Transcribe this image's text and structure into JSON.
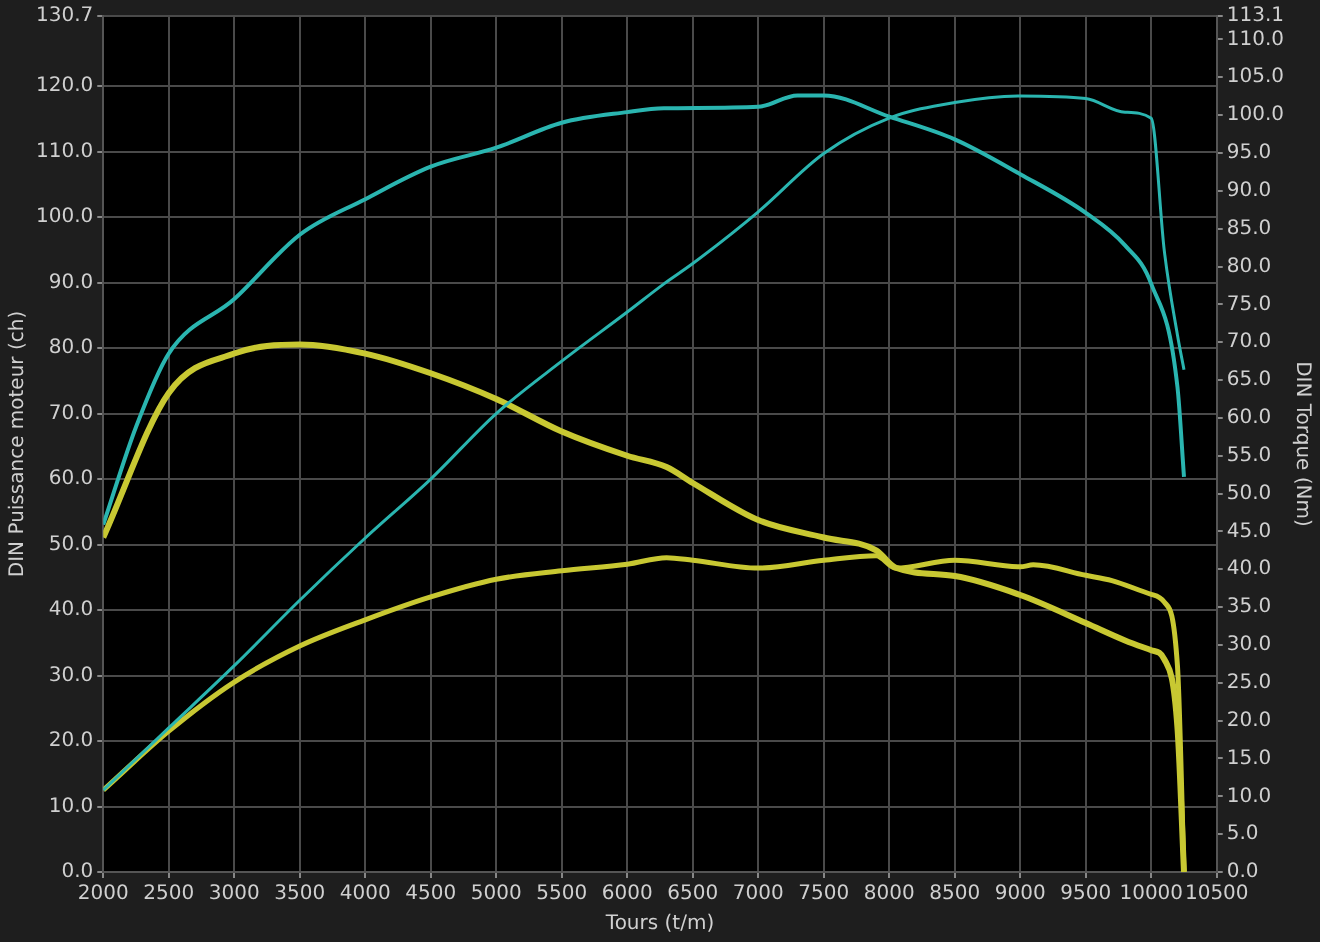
{
  "chart_data": {
    "type": "line",
    "xlabel": "Tours (t/m)",
    "ylabel": "DIN Puissance moteur (ch)",
    "y2label": "DIN Torque (Nm)",
    "xlim": [
      2000,
      10500
    ],
    "xticks": [
      2000,
      2500,
      3000,
      3500,
      4000,
      4500,
      5000,
      5500,
      6000,
      6500,
      7000,
      7500,
      8000,
      8500,
      9000,
      9500,
      10000,
      10500
    ],
    "ylim": [
      0,
      130.7
    ],
    "yticks": [
      {
        "value": 0,
        "label": "0.0"
      },
      {
        "value": 10,
        "label": "10.0"
      },
      {
        "value": 20,
        "label": "20.0"
      },
      {
        "value": 30,
        "label": "30.0"
      },
      {
        "value": 40,
        "label": "40.0"
      },
      {
        "value": 50,
        "label": "50.0"
      },
      {
        "value": 60,
        "label": "60.0"
      },
      {
        "value": 70,
        "label": "70.0"
      },
      {
        "value": 80,
        "label": "80.0"
      },
      {
        "value": 90,
        "label": "90.0"
      },
      {
        "value": 100,
        "label": "100.0"
      },
      {
        "value": 110,
        "label": "110.0"
      },
      {
        "value": 120,
        "label": "120.0"
      },
      {
        "value": 130.7,
        "label": "130.7"
      }
    ],
    "y2lim": [
      0,
      113.1
    ],
    "y2ticks": [
      {
        "value": 0,
        "label": "0.0"
      },
      {
        "value": 5,
        "label": "5.0"
      },
      {
        "value": 10,
        "label": "10.0"
      },
      {
        "value": 15,
        "label": "15.0"
      },
      {
        "value": 20,
        "label": "20.0"
      },
      {
        "value": 25,
        "label": "25.0"
      },
      {
        "value": 30,
        "label": "30.0"
      },
      {
        "value": 35,
        "label": "35.0"
      },
      {
        "value": 40,
        "label": "40.0"
      },
      {
        "value": 45,
        "label": "45.0"
      },
      {
        "value": 50,
        "label": "50.0"
      },
      {
        "value": 55,
        "label": "55.0"
      },
      {
        "value": 60,
        "label": "60.0"
      },
      {
        "value": 65,
        "label": "65.0"
      },
      {
        "value": 70,
        "label": "70.0"
      },
      {
        "value": 75,
        "label": "75.0"
      },
      {
        "value": 80,
        "label": "80.0"
      },
      {
        "value": 85,
        "label": "85.0"
      },
      {
        "value": 90,
        "label": "90.0"
      },
      {
        "value": 95,
        "label": "95.0"
      },
      {
        "value": 100,
        "label": "100.0"
      },
      {
        "value": 105,
        "label": "105.0"
      },
      {
        "value": 110,
        "label": "110.0"
      },
      {
        "value": 113.1,
        "label": "113.1"
      }
    ],
    "grid": true,
    "series": [
      {
        "color": "#2ab5b0",
        "x": [
          2000,
          2500,
          3000,
          3500,
          4000,
          4500,
          5000,
          5500,
          6000,
          6280,
          6500,
          7000,
          7500,
          8000,
          8500,
          9000,
          9500,
          9800,
          10000,
          10100,
          10200,
          10250
        ],
        "values": [
          12.5,
          22,
          31.5,
          41.5,
          51,
          60,
          70,
          78,
          85.5,
          89.8,
          92.9,
          100.8,
          109.7,
          115.1,
          117.5,
          118.5,
          118.1,
          116,
          115.1,
          94.8,
          82,
          76.7
        ]
      },
      {
        "color": "#2ab5b0",
        "axis": "y2",
        "x": [
          2000,
          2250,
          2500,
          3000,
          3500,
          4000,
          4500,
          5000,
          5500,
          6000,
          6280,
          7000,
          7300,
          7500,
          8000,
          8500,
          9000,
          9500,
          9800,
          10000,
          10200,
          10250
        ],
        "values": [
          45.9,
          58.8,
          68.5,
          75.7,
          84.2,
          88.9,
          93.2,
          95.7,
          99,
          100.4,
          100.9,
          101.1,
          102.6,
          102.6,
          99.8,
          96.8,
          92.2,
          87.1,
          82.8,
          77.7,
          64.1,
          52.2
        ]
      },
      {
        "color": "#c8c832",
        "x": [
          2000,
          2500,
          3000,
          3500,
          4000,
          4500,
          5000,
          5500,
          6000,
          6300,
          6500,
          7000,
          7500,
          7900,
          8050,
          8500,
          9000,
          9100,
          9500,
          9700,
          10000,
          10100,
          10200,
          10250
        ],
        "values": [
          12.5,
          21.5,
          29,
          34.5,
          38.5,
          42,
          44.7,
          46,
          47,
          48,
          47.6,
          46.4,
          47.6,
          48.3,
          46.4,
          47.6,
          46.6,
          46.9,
          45.3,
          44.5,
          42.4,
          41.2,
          31.5,
          0
        ]
      },
      {
        "color": "#c8c832",
        "axis": "y2",
        "x": [
          2000,
          2500,
          3000,
          3500,
          4000,
          4500,
          5000,
          5500,
          6000,
          6300,
          6500,
          7000,
          7500,
          7900,
          8050,
          8500,
          9000,
          9500,
          9800,
          10000,
          10100,
          10200,
          10250
        ],
        "values": [
          44.2,
          63.3,
          68.5,
          69.7,
          68.5,
          65.9,
          62.5,
          58.2,
          55,
          53.5,
          51.4,
          46.5,
          44.2,
          42.5,
          40.2,
          39.1,
          36.6,
          32.9,
          30.6,
          29.3,
          28.1,
          19.1,
          0
        ]
      }
    ]
  }
}
